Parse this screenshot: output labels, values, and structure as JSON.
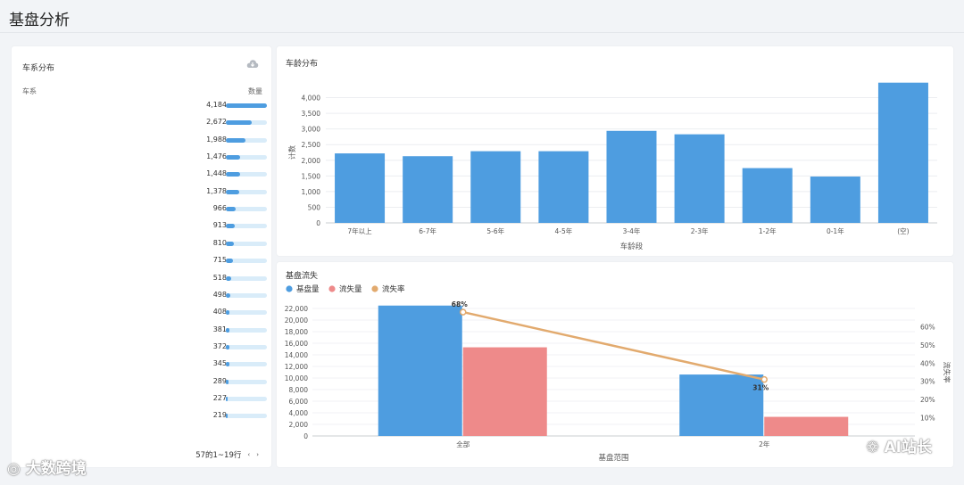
{
  "page": {
    "title": "基盘分析"
  },
  "left_panel": {
    "title": "车系分布",
    "col_series": "车系",
    "col_count": "数量",
    "icon": "cloud-download-icon",
    "rows": [
      {
        "value": 4184,
        "label": "4,184"
      },
      {
        "value": 2672,
        "label": "2,672"
      },
      {
        "value": 1988,
        "label": "1,988"
      },
      {
        "value": 1476,
        "label": "1,476"
      },
      {
        "value": 1448,
        "label": "1,448"
      },
      {
        "value": 1378,
        "label": "1,378"
      },
      {
        "value": 966,
        "label": "966"
      },
      {
        "value": 913,
        "label": "913"
      },
      {
        "value": 810,
        "label": "810"
      },
      {
        "value": 715,
        "label": "715"
      },
      {
        "value": 518,
        "label": "518"
      },
      {
        "value": 498,
        "label": "498"
      },
      {
        "value": 408,
        "label": "408"
      },
      {
        "value": 381,
        "label": "381"
      },
      {
        "value": 372,
        "label": "372"
      },
      {
        "value": 345,
        "label": "345"
      },
      {
        "value": 289,
        "label": "289"
      },
      {
        "value": 227,
        "label": "227"
      },
      {
        "value": 219,
        "label": "219"
      }
    ],
    "pager_text": "57的1~19行",
    "prev": "‹",
    "next": "›"
  },
  "chart_data": [
    {
      "type": "bar",
      "title": "车龄分布",
      "categories": [
        "7年以上",
        "6-7年",
        "5-6年",
        "4-5年",
        "3-4年",
        "2-3年",
        "1-2年",
        "0-1年",
        "(空)"
      ],
      "values": [
        2220,
        2130,
        2290,
        2290,
        2940,
        2830,
        1750,
        1480,
        4480
      ],
      "xlabel": "车龄段",
      "ylabel": "计数",
      "ylim": [
        0,
        4500
      ],
      "yticks": [
        "0",
        "500",
        "1,000",
        "1,500",
        "2,000",
        "2,500",
        "3,000",
        "3,500",
        "4,000"
      ],
      "grid": true
    },
    {
      "type": "bar",
      "title": "基盘流失",
      "categories": [
        "全部",
        "2年"
      ],
      "series": [
        {
          "name": "基盘量",
          "values": [
            22500,
            10600
          ],
          "color": "#4e9de0"
        },
        {
          "name": "流失量",
          "values": [
            15300,
            3300
          ],
          "color": "#ee8a8a"
        }
      ],
      "line_series": {
        "name": "流失率",
        "values": [
          68,
          31
        ],
        "labels": [
          "68%",
          "31%"
        ],
        "color": "#e2aa6e"
      },
      "xlabel": "基盘范围",
      "ylabel_right": "流失率",
      "ylim": [
        0,
        22000
      ],
      "yticks": [
        "0",
        "2,000",
        "4,000",
        "6,000",
        "8,000",
        "10,000",
        "12,000",
        "14,000",
        "16,000",
        "18,000",
        "20,000",
        "22,000"
      ],
      "y2lim": [
        0,
        70
      ],
      "y2ticks": [
        "10%",
        "20%",
        "30%",
        "40%",
        "50%",
        "60%"
      ],
      "legend": "top-left"
    }
  ],
  "watermarks": {
    "left": "大数跨境",
    "right": "AI站长"
  }
}
